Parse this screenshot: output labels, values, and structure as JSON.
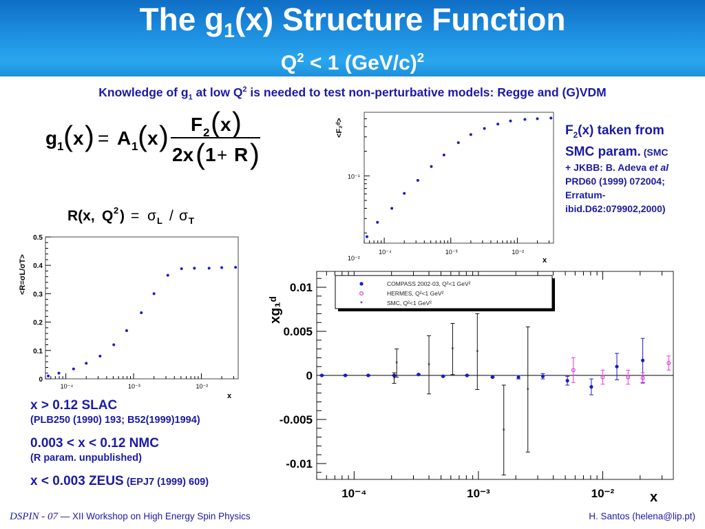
{
  "header": {
    "title_pre": "The g",
    "title_sub": "1",
    "title_post": "(x) Structure Function",
    "subtitle_pre": "Q",
    "subtitle_sup": "2",
    "subtitle_mid": " < 1 (GeV/c)",
    "subtitle_sup2": "2"
  },
  "intro": {
    "pre": "Knowledge of g",
    "sub": "1",
    "mid": " at low Q",
    "sup": "2",
    "post": " is needed to test non-perturbative models: Regge and (G)VDM"
  },
  "f2_note": {
    "line1_pre": "F",
    "line1_sub": "2",
    "line1_post": "(x) taken from",
    "line2": "SMC param.",
    "line2_small": " (SMC",
    "line3_pre": "+ JKBB: B. Adeva ",
    "line3_em": "et al",
    "line4": "PRD60 (1999) 072004;",
    "line5": "Erratum-",
    "line6": "ibid.D62:079902,2000)"
  },
  "refs": [
    {
      "main": "x > 0.12 SLAC",
      "sub": "(PLB250 (1990) 193; B52(1999)1994)"
    },
    {
      "main": "0.003 < x < 0.12 NMC",
      "sub": "(R param. unpublished)"
    },
    {
      "main": "x < 0.003 ZEUS",
      "sub": " (EPJ7 (1999) 609)"
    }
  ],
  "footer": {
    "conference": "DSPIN - 07",
    "dash": " — ",
    "workshop": "XII Workshop on High Energy Spin Physics",
    "author": "H. Santos  (helena@lip.pt)"
  },
  "chart_data": [
    {
      "type": "scatter",
      "id": "f2",
      "ylabel": "<F₂ᵈ>",
      "xlabel": "x",
      "x_scale": "log",
      "y_scale": "log",
      "xlim": [
        5e-05,
        0.035
      ],
      "ylim": [
        0.015,
        0.6
      ],
      "x_ticks": [
        "10⁻⁴",
        "10⁻³",
        "10⁻²"
      ],
      "y_ticks": [
        "10⁻²",
        "10⁻¹"
      ],
      "color": "#1a1ad0",
      "x": [
        5.5e-05,
        7.9e-05,
        0.00013,
        0.0002,
        0.00032,
        0.00051,
        0.00079,
        0.0013,
        0.002,
        0.0032,
        0.0051,
        0.0079,
        0.013,
        0.02,
        0.032
      ],
      "y": [
        0.018,
        0.027,
        0.04,
        0.061,
        0.088,
        0.13,
        0.18,
        0.255,
        0.32,
        0.38,
        0.43,
        0.47,
        0.49,
        0.5,
        0.51
      ]
    },
    {
      "type": "scatter",
      "id": "r",
      "ylabel": "<R=σL/σT>",
      "xlabel": "x",
      "x_scale": "log",
      "xlim": [
        5e-05,
        0.035
      ],
      "ylim": [
        0,
        0.5
      ],
      "x_ticks": [
        "10⁻⁴",
        "10⁻³",
        "10⁻²"
      ],
      "y_ticks": [
        "0",
        "0.1",
        "0.2",
        "0.3",
        "0.4",
        "0.5"
      ],
      "color": "#1a1ad0",
      "x": [
        5.5e-05,
        7.9e-05,
        0.00013,
        0.0002,
        0.00032,
        0.00051,
        0.00079,
        0.0013,
        0.002,
        0.0032,
        0.0051,
        0.0079,
        0.013,
        0.02,
        0.032
      ],
      "y": [
        0.01,
        0.02,
        0.035,
        0.055,
        0.08,
        0.12,
        0.17,
        0.233,
        0.3,
        0.365,
        0.388,
        0.39,
        0.39,
        0.392,
        0.393
      ]
    },
    {
      "type": "scatter",
      "id": "xg1",
      "ylabel": "xg₁ᵈ",
      "xlabel": "x",
      "x_scale": "log",
      "xlim": [
        5e-05,
        0.037
      ],
      "ylim": [
        -0.0118,
        0.0118
      ],
      "x_ticks": [
        "10⁻⁴",
        "10⁻³",
        "10⁻²"
      ],
      "y_ticks": [
        "0.01",
        "0.005",
        "0",
        "-0.005",
        "-0.01"
      ],
      "legend": "top",
      "series": [
        {
          "name": "COMPASS 2002-03, Q²<1 GeV²",
          "color": "#1a1ad0",
          "marker": "dot",
          "points": [
            {
              "x": 5.5e-05,
              "y": 0.0,
              "err": 5e-05
            },
            {
              "x": 8.5e-05,
              "y": 0.0,
              "err": 5e-05
            },
            {
              "x": 0.00013,
              "y": 0.0,
              "err": 5e-05
            },
            {
              "x": 0.00021,
              "y": 0.0,
              "err": 5e-05
            },
            {
              "x": 0.00033,
              "y": 0.0001,
              "err": 5e-05
            },
            {
              "x": 0.00052,
              "y": -0.0001,
              "err": 5e-05
            },
            {
              "x": 0.00081,
              "y": 0.0,
              "err": 5e-05
            },
            {
              "x": 0.0013,
              "y": -0.0002,
              "err": 5e-05
            },
            {
              "x": 0.0021,
              "y": -0.0002,
              "err": 0.0002
            },
            {
              "x": 0.0033,
              "y": -0.0001,
              "err": 0.0003
            },
            {
              "x": 0.0052,
              "y": -0.0006,
              "err": 0.0005
            },
            {
              "x": 0.0081,
              "y": -0.0013,
              "err": 0.0009
            },
            {
              "x": 0.013,
              "y": 0.001,
              "err": 0.0015
            },
            {
              "x": 0.021,
              "y": 0.0017,
              "err": 0.0025
            }
          ]
        },
        {
          "name": "HERMES, Q²<1 GeV²",
          "color": "#e23ad8",
          "marker": "open",
          "points": [
            {
              "x": 0.0058,
              "y": 0.0006,
              "err": 0.0014
            },
            {
              "x": 0.01,
              "y": -0.0002,
              "err": 0.0008
            },
            {
              "x": 0.016,
              "y": -0.0002,
              "err": 0.0008
            },
            {
              "x": 0.021,
              "y": -0.0003,
              "err": 0.0006
            },
            {
              "x": 0.034,
              "y": 0.0014,
              "err": 0.0008
            }
          ]
        },
        {
          "name": "SMC, Q²<1 GeV²",
          "color": "#111111",
          "marker": "star",
          "points": [
            {
              "x": 0.00021,
              "y": -0.0003,
              "err": 0.0006
            },
            {
              "x": 0.00022,
              "y": 0.0014,
              "err": 0.0016
            },
            {
              "x": 0.0004,
              "y": 0.0012,
              "err": 0.0033
            },
            {
              "x": 0.00062,
              "y": 0.003,
              "err": 0.0029
            },
            {
              "x": 0.00098,
              "y": 0.0027,
              "err": 0.0043
            },
            {
              "x": 0.0016,
              "y": -0.0062,
              "err": 0.0051
            },
            {
              "x": 0.0025,
              "y": -0.0016,
              "err": 0.0071
            }
          ]
        }
      ]
    }
  ]
}
